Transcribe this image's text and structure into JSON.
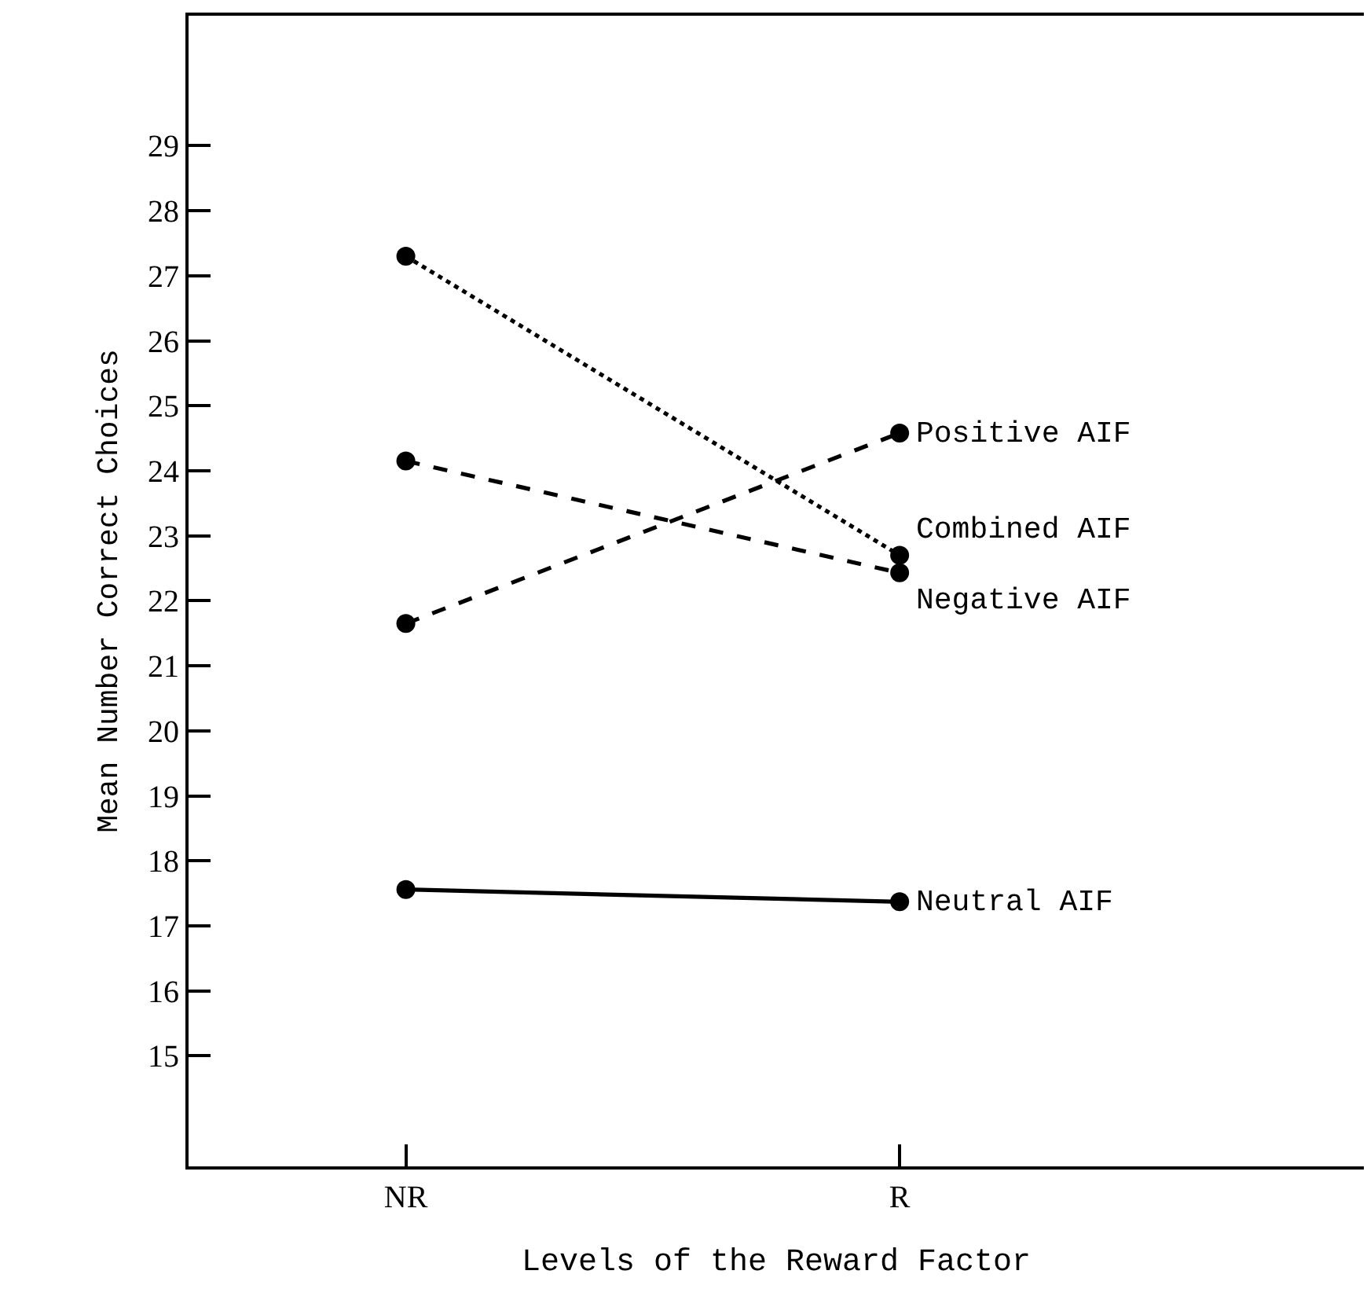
{
  "chart_data": {
    "type": "line",
    "xlabel": "Levels of the Reward Factor",
    "ylabel": "Mean Number Correct Choices",
    "categories": [
      "NR",
      "R"
    ],
    "ylim": [
      13.3,
      31
    ],
    "yticks": [
      15,
      16,
      17,
      18,
      19,
      20,
      21,
      22,
      23,
      24,
      25,
      26,
      27,
      28,
      29
    ],
    "marker": "circle",
    "legend": false,
    "grid": false,
    "series": [
      {
        "name": "Positive AIF",
        "color": "#000000",
        "line_style": "dashed",
        "values": [
          21.65,
          24.58
        ]
      },
      {
        "name": "Combined AIF",
        "color": "#000000",
        "line_style": "dotted",
        "values": [
          27.3,
          22.7
        ]
      },
      {
        "name": "Negative AIF",
        "color": "#000000",
        "line_style": "dashed",
        "values": [
          24.15,
          22.43
        ]
      },
      {
        "name": "Neutral AIF",
        "color": "#000000",
        "line_style": "solid",
        "values": [
          17.56,
          17.37
        ]
      }
    ]
  }
}
